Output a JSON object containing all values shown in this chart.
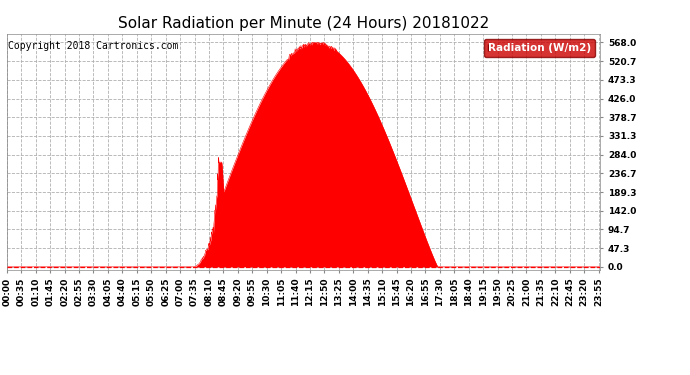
{
  "title": "Solar Radiation per Minute (24 Hours) 20181022",
  "copyright": "Copyright 2018 Cartronics.com",
  "legend_label": "Radiation (W/m2)",
  "bg_color": "#ffffff",
  "plot_bg_color": "#ffffff",
  "fill_color": "#ff0000",
  "line_color": "#ff0000",
  "zero_line_color": "#ff0000",
  "zero_line_style": "--",
  "grid_color": "#b0b0b0",
  "grid_style": "--",
  "yticks": [
    0.0,
    47.3,
    94.7,
    142.0,
    189.3,
    236.7,
    284.0,
    331.3,
    378.7,
    426.0,
    473.3,
    520.7,
    568.0
  ],
  "ylim": [
    -8,
    590
  ],
  "total_minutes": 1440,
  "sunrise_minute": 455,
  "peak_minute": 735,
  "sunset_minute": 1045,
  "peak_value": 568.0,
  "title_fontsize": 11,
  "tick_fontsize": 6.5,
  "legend_fontsize": 7.5,
  "copyright_fontsize": 7
}
